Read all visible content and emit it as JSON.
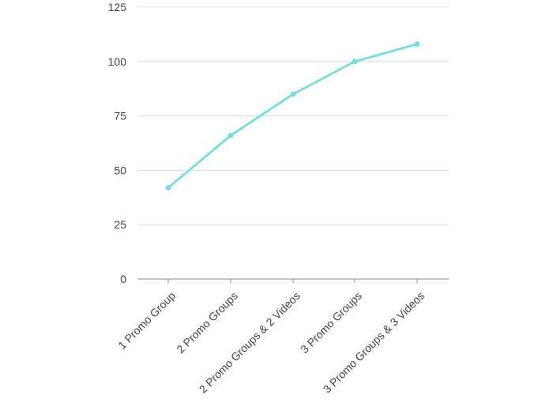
{
  "chart_data": {
    "type": "line",
    "categories": [
      "1 Promo Group",
      "2 Promo Groups",
      "2 Promo Groups & 2 Videos",
      "3 Promo Groups",
      "3 Promo Groups & 3 Videos"
    ],
    "series": [
      {
        "values": [
          42,
          66,
          85,
          100,
          108
        ]
      }
    ],
    "y_ticks": [
      "0",
      "25",
      "50",
      "75",
      "100",
      "125"
    ],
    "ylim": [
      0,
      125
    ],
    "grid": true,
    "legend": "none",
    "colors": {
      "line": "#7addde",
      "grid": "#d9d9d9",
      "axis": "#888888",
      "text": "#444444"
    }
  }
}
